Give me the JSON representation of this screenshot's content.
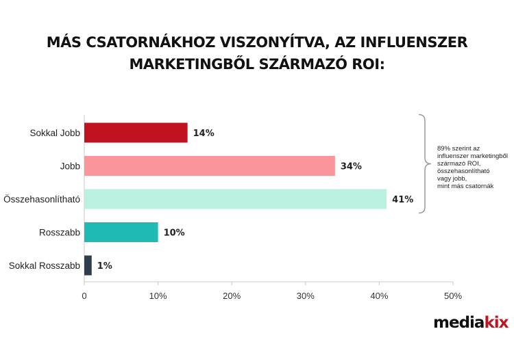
{
  "title_line1": "MÁS CSATORNÁKHOZ VISZONYÍTVA, AZ INFLUENSZER",
  "title_line2": "MARKETINGBŐL SZÁRMAZÓ ROI:",
  "annotation": {
    "lines": [
      "89% szerint az",
      "influenszer marketingből",
      "származó ROI,",
      "összehasonlítható",
      "vagy jobb,",
      "mint más csatornák"
    ]
  },
  "logo": {
    "part1": "media",
    "part2": "kix"
  },
  "chart_data": {
    "type": "bar",
    "orientation": "horizontal",
    "categories": [
      "Sokkal Jobb",
      "Jobb",
      "Összehasonlítható",
      "Rosszabb",
      "Sokkal Rosszabb"
    ],
    "values": [
      14,
      34,
      41,
      10,
      1
    ],
    "value_labels": [
      "14%",
      "34%",
      "41%",
      "10%",
      "1%"
    ],
    "colors": [
      "#c1121f",
      "#fb959c",
      "#b9f0e0",
      "#1fbab4",
      "#2f3e4c"
    ],
    "x_ticks": [
      "0",
      "10%",
      "20%",
      "30%",
      "40%",
      "50%"
    ],
    "xlim": [
      0,
      50
    ],
    "grid": false,
    "title": "MÁS CSATORNÁKHOZ VISZONYÍTVA, AZ INFLUENSZER MARKETINGBŐL SZÁRMAZÓ ROI:"
  }
}
